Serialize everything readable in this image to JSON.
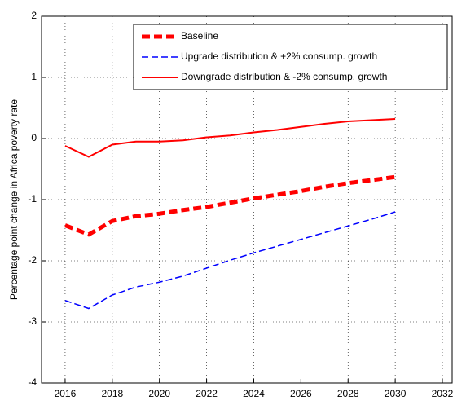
{
  "chart_data": {
    "type": "line",
    "ylabel": "Percentage point change in Africa poverty rate",
    "x": [
      2016,
      2017,
      2018,
      2019,
      2020,
      2021,
      2022,
      2023,
      2024,
      2025,
      2026,
      2027,
      2028,
      2029,
      2030
    ],
    "series": [
      {
        "name": "Baseline",
        "color": "#ff0000",
        "linestyle": "dashed",
        "linewidth": 5,
        "values": [
          -1.42,
          -1.57,
          -1.35,
          -1.27,
          -1.23,
          -1.17,
          -1.12,
          -1.05,
          -0.98,
          -0.92,
          -0.86,
          -0.79,
          -0.73,
          -0.68,
          -0.63
        ]
      },
      {
        "name": "Upgrade distribution & +2% consump. growth",
        "color": "#0000ff",
        "linestyle": "dashed",
        "linewidth": 1.5,
        "values": [
          -2.65,
          -2.78,
          -2.56,
          -2.43,
          -2.35,
          -2.25,
          -2.12,
          -1.99,
          -1.87,
          -1.76,
          -1.65,
          -1.54,
          -1.43,
          -1.32,
          -1.2
        ]
      },
      {
        "name": "Downgrade distribution & -2% consump. growth",
        "color": "#ff0000",
        "linestyle": "solid",
        "linewidth": 2,
        "values": [
          -0.12,
          -0.3,
          -0.1,
          -0.05,
          -0.05,
          -0.03,
          0.02,
          0.05,
          0.1,
          0.14,
          0.19,
          0.24,
          0.28,
          0.3,
          0.32
        ]
      }
    ],
    "xlim": [
      2015,
      2032
    ],
    "xticks": [
      2016,
      2018,
      2020,
      2022,
      2024,
      2026,
      2028,
      2030,
      2032
    ],
    "ylim": [
      -4,
      2
    ],
    "yticks": [
      -4,
      -3,
      -2,
      -1,
      0,
      1,
      2
    ],
    "grid": true,
    "legend": "upper right"
  }
}
